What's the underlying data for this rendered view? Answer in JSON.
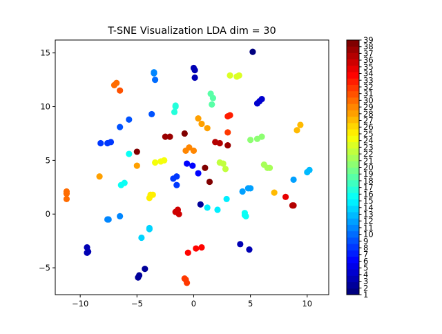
{
  "chart_data": {
    "type": "scatter",
    "title": "T-SNE Visualization LDA dim = 30",
    "xlabel": "",
    "ylabel": "",
    "xlim": [
      -12.2,
      11.9
    ],
    "ylim": [
      -7.5,
      16.2
    ],
    "xticks": [
      -10,
      -5,
      0,
      5,
      10
    ],
    "yticks": [
      -5,
      0,
      5,
      10,
      15
    ],
    "grid": false,
    "colormap": "jet",
    "colorbar": {
      "range": [
        1,
        39
      ],
      "ticks": [
        1,
        2,
        3,
        4,
        5,
        6,
        7,
        8,
        9,
        10,
        11,
        12,
        13,
        14,
        15,
        16,
        17,
        18,
        19,
        20,
        21,
        22,
        23,
        24,
        25,
        26,
        27,
        28,
        29,
        30,
        31,
        32,
        33,
        34,
        35,
        36,
        37,
        38,
        39
      ],
      "levels": 40
    },
    "points": [
      {
        "x": 5.2,
        "y": 15.1,
        "c": 1
      },
      {
        "x": 0.0,
        "y": 13.6,
        "c": 3
      },
      {
        "x": 0.1,
        "y": 13.4,
        "c": 3
      },
      {
        "x": 0.1,
        "y": 12.7,
        "c": 3
      },
      {
        "x": 5.6,
        "y": 10.3,
        "c": 4
      },
      {
        "x": 5.8,
        "y": 10.5,
        "c": 4
      },
      {
        "x": 6.0,
        "y": 10.7,
        "c": 4
      },
      {
        "x": -4.9,
        "y": -5.9,
        "c": 2
      },
      {
        "x": -4.8,
        "y": -5.7,
        "c": 2
      },
      {
        "x": -4.3,
        "y": -5.1,
        "c": 2
      },
      {
        "x": -9.4,
        "y": -3.6,
        "c": 3
      },
      {
        "x": -9.3,
        "y": -3.5,
        "c": 3
      },
      {
        "x": -9.4,
        "y": -3.1,
        "c": 3
      },
      {
        "x": 4.1,
        "y": -2.8,
        "c": 3
      },
      {
        "x": 4.9,
        "y": -3.3,
        "c": 3
      },
      {
        "x": 0.6,
        "y": 0.9,
        "c": 2
      },
      {
        "x": 0.4,
        "y": 3.8,
        "c": 6
      },
      {
        "x": -0.6,
        "y": 4.7,
        "c": 6
      },
      {
        "x": -0.1,
        "y": 4.5,
        "c": 6
      },
      {
        "x": -8.2,
        "y": 6.6,
        "c": 8
      },
      {
        "x": -7.6,
        "y": 6.6,
        "c": 8
      },
      {
        "x": -7.3,
        "y": 6.7,
        "c": 8
      },
      {
        "x": -1.5,
        "y": 3.5,
        "c": 8
      },
      {
        "x": -1.8,
        "y": 3.3,
        "c": 8
      },
      {
        "x": -1.5,
        "y": 2.7,
        "c": 8
      },
      {
        "x": -6.5,
        "y": 8.1,
        "c": 9
      },
      {
        "x": -5.7,
        "y": 8.8,
        "c": 9
      },
      {
        "x": -3.7,
        "y": 9.3,
        "c": 9
      },
      {
        "x": -3.4,
        "y": 12.5,
        "c": 10
      },
      {
        "x": -3.5,
        "y": 13.1,
        "c": 11
      },
      {
        "x": -3.5,
        "y": 13.2,
        "c": 11
      },
      {
        "x": -7.6,
        "y": -0.5,
        "c": 11
      },
      {
        "x": -7.5,
        "y": -0.5,
        "c": 11
      },
      {
        "x": -6.5,
        "y": -0.2,
        "c": 11
      },
      {
        "x": 4.8,
        "y": 2.4,
        "c": 12
      },
      {
        "x": 5.0,
        "y": 2.4,
        "c": 12
      },
      {
        "x": 4.3,
        "y": 2.1,
        "c": 12
      },
      {
        "x": 8.8,
        "y": 3.2,
        "c": 12
      },
      {
        "x": 10.0,
        "y": 3.9,
        "c": 13
      },
      {
        "x": 10.2,
        "y": 4.1,
        "c": 13
      },
      {
        "x": -3.9,
        "y": -1.4,
        "c": 14
      },
      {
        "x": -3.9,
        "y": -1.3,
        "c": 14
      },
      {
        "x": -4.6,
        "y": -2.2,
        "c": 14
      },
      {
        "x": 1.2,
        "y": 0.6,
        "c": 15
      },
      {
        "x": 2.1,
        "y": 0.4,
        "c": 15
      },
      {
        "x": 2.9,
        "y": 1.4,
        "c": 15
      },
      {
        "x": -6.4,
        "y": 2.7,
        "c": 16
      },
      {
        "x": -6.1,
        "y": 2.9,
        "c": 16
      },
      {
        "x": -5.7,
        "y": 5.6,
        "c": 16
      },
      {
        "x": 4.5,
        "y": -0.1,
        "c": 16
      },
      {
        "x": 4.5,
        "y": 0.1,
        "c": 16
      },
      {
        "x": 4.6,
        "y": -0.2,
        "c": 16
      },
      {
        "x": -1.7,
        "y": 9.5,
        "c": 17
      },
      {
        "x": -1.6,
        "y": 10.0,
        "c": 17
      },
      {
        "x": -1.6,
        "y": 10.1,
        "c": 17
      },
      {
        "x": 1.5,
        "y": 11.2,
        "c": 19
      },
      {
        "x": 1.7,
        "y": 10.8,
        "c": 19
      },
      {
        "x": 1.6,
        "y": 10.2,
        "c": 19
      },
      {
        "x": 5.0,
        "y": 6.9,
        "c": 20
      },
      {
        "x": 5.6,
        "y": 7.0,
        "c": 20
      },
      {
        "x": 6.0,
        "y": 7.2,
        "c": 20
      },
      {
        "x": 6.2,
        "y": 4.6,
        "c": 21
      },
      {
        "x": 6.5,
        "y": 4.3,
        "c": 21
      },
      {
        "x": 6.7,
        "y": 4.3,
        "c": 21
      },
      {
        "x": 2.3,
        "y": 4.8,
        "c": 22
      },
      {
        "x": 2.6,
        "y": 4.7,
        "c": 22
      },
      {
        "x": 2.8,
        "y": 4.2,
        "c": 22
      },
      {
        "x": 3.2,
        "y": 12.9,
        "c": 23
      },
      {
        "x": 3.8,
        "y": 12.8,
        "c": 23
      },
      {
        "x": 4.0,
        "y": 12.9,
        "c": 23
      },
      {
        "x": -3.4,
        "y": 4.8,
        "c": 24
      },
      {
        "x": -2.9,
        "y": 4.9,
        "c": 24
      },
      {
        "x": -2.6,
        "y": 5.0,
        "c": 24
      },
      {
        "x": -3.9,
        "y": 1.5,
        "c": 25
      },
      {
        "x": -3.8,
        "y": 1.8,
        "c": 25
      },
      {
        "x": -3.6,
        "y": 1.8,
        "c": 25
      },
      {
        "x": 7.1,
        "y": 2.0,
        "c": 27
      },
      {
        "x": 9.1,
        "y": 7.8,
        "c": 27
      },
      {
        "x": 9.4,
        "y": 8.3,
        "c": 27
      },
      {
        "x": -8.3,
        "y": 3.5,
        "c": 28
      },
      {
        "x": -5.0,
        "y": 4.5,
        "c": 28
      },
      {
        "x": 0.4,
        "y": 8.9,
        "c": 28
      },
      {
        "x": 0.7,
        "y": 8.4,
        "c": 28
      },
      {
        "x": 1.2,
        "y": 8.0,
        "c": 28
      },
      {
        "x": -0.7,
        "y": 5.9,
        "c": 29
      },
      {
        "x": -0.4,
        "y": 6.2,
        "c": 29
      },
      {
        "x": 0.0,
        "y": 5.9,
        "c": 29
      },
      {
        "x": -11.2,
        "y": 1.4,
        "c": 30
      },
      {
        "x": -11.2,
        "y": 1.9,
        "c": 30
      },
      {
        "x": -11.2,
        "y": 2.1,
        "c": 30
      },
      {
        "x": -7.0,
        "y": 12.0,
        "c": 30
      },
      {
        "x": -6.8,
        "y": 12.2,
        "c": 30
      },
      {
        "x": -6.5,
        "y": 11.5,
        "c": 31
      },
      {
        "x": 3.0,
        "y": 7.6,
        "c": 32
      },
      {
        "x": 3.0,
        "y": 9.1,
        "c": 33
      },
      {
        "x": 3.2,
        "y": 9.2,
        "c": 33
      },
      {
        "x": 0.2,
        "y": -3.2,
        "c": 34
      },
      {
        "x": 0.7,
        "y": -3.1,
        "c": 34
      },
      {
        "x": -0.5,
        "y": -3.6,
        "c": 34
      },
      {
        "x": -0.8,
        "y": -6.0,
        "c": 32
      },
      {
        "x": -0.7,
        "y": -6.1,
        "c": 32
      },
      {
        "x": -0.6,
        "y": -6.4,
        "c": 32
      },
      {
        "x": 8.1,
        "y": 1.6,
        "c": 35
      },
      {
        "x": 8.8,
        "y": 0.8,
        "c": 37
      },
      {
        "x": 8.7,
        "y": 0.8,
        "c": 37
      },
      {
        "x": -1.6,
        "y": 0.2,
        "c": 36
      },
      {
        "x": -1.4,
        "y": 0.4,
        "c": 36
      },
      {
        "x": -1.3,
        "y": 0.0,
        "c": 36
      },
      {
        "x": 1.9,
        "y": 6.7,
        "c": 37
      },
      {
        "x": 2.3,
        "y": 6.6,
        "c": 37
      },
      {
        "x": 3.0,
        "y": 6.4,
        "c": 38
      },
      {
        "x": -2.5,
        "y": 7.2,
        "c": 38
      },
      {
        "x": -2.1,
        "y": 7.2,
        "c": 38
      },
      {
        "x": -0.8,
        "y": 7.5,
        "c": 39
      },
      {
        "x": -5.0,
        "y": 5.8,
        "c": 39
      },
      {
        "x": 1.0,
        "y": 4.3,
        "c": 39
      },
      {
        "x": 1.4,
        "y": 3.0,
        "c": 39
      }
    ]
  }
}
